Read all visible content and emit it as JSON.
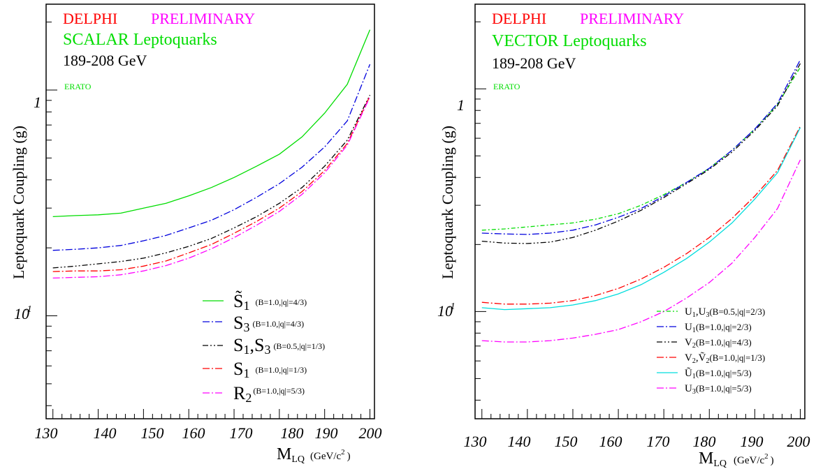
{
  "colors": {
    "red": "#ff0000",
    "magenta": "#ff00ff",
    "green": "#00dd00",
    "blue": "#0000dd",
    "black": "#000000",
    "cyan": "#00dddd"
  },
  "x_axis_ticks": [
    "130",
    "140",
    "150",
    "160",
    "170",
    "180",
    "190",
    "200"
  ],
  "chart_data": [
    {
      "type": "line",
      "title_experiment": "DELPHI",
      "title_status": "PRELIMINARY",
      "subtitle": "SCALAR Leptoquarks",
      "energy": "189-208 GeV",
      "tag": "ERATO",
      "ylabel": "Leptoquark Coupling (g)",
      "xlabel_main": "M",
      "xlabel_sub": "LQ",
      "xlabel_units": "(GeV/c",
      "xlabel_units_exp": "2",
      "xlabel_units_close": ")",
      "yscale": "log",
      "xlim": [
        128.5,
        201
      ],
      "ylim": [
        0.035,
        2.4
      ],
      "y_tick_labels": [
        {
          "value": 1,
          "base": "1",
          "exp": ""
        },
        {
          "value": 0.1,
          "base": "10",
          "exp": "-1"
        }
      ],
      "legend_placement": "bottom-right",
      "series": [
        {
          "name_main": "S̃",
          "name_sub": "1",
          "cond": "(B=1.0,|q|=4/3)",
          "color": "#00dd00",
          "dash": "",
          "x": [
            130,
            135,
            140,
            145,
            150,
            155,
            160,
            165,
            170,
            175,
            180,
            185,
            190,
            195,
            200
          ],
          "y": [
            0.275,
            0.278,
            0.28,
            0.285,
            0.3,
            0.315,
            0.34,
            0.37,
            0.41,
            0.46,
            0.52,
            0.62,
            0.79,
            1.06,
            1.85
          ]
        },
        {
          "name_main": "S",
          "name_sub": "3",
          "cond": "(B=1.0,|q|=4/3)",
          "color": "#0000dd",
          "dash": "10,3,2,3",
          "x": [
            130,
            135,
            140,
            145,
            150,
            155,
            160,
            165,
            170,
            175,
            180,
            185,
            190,
            195,
            200
          ],
          "y": [
            0.195,
            0.197,
            0.2,
            0.205,
            0.215,
            0.227,
            0.245,
            0.265,
            0.295,
            0.335,
            0.385,
            0.455,
            0.56,
            0.73,
            1.3
          ]
        },
        {
          "name_main": "S",
          "name_sub": "1",
          "name_main2": ",S",
          "name_sub2": "3",
          "cond": "(B=0.5,|q|=1/3)",
          "color": "#000000",
          "dash": "8,3,2,3,2,3",
          "x": [
            130,
            135,
            140,
            145,
            150,
            155,
            160,
            165,
            170,
            175,
            180,
            185,
            190,
            195,
            200
          ],
          "y": [
            0.163,
            0.166,
            0.17,
            0.174,
            0.18,
            0.19,
            0.203,
            0.22,
            0.245,
            0.275,
            0.315,
            0.37,
            0.46,
            0.6,
            0.95
          ]
        },
        {
          "name_main": "S",
          "name_sub": "1",
          "cond": "(B=1.0,|q|=1/3)",
          "color": "#ff0000",
          "dash": "10,3,2,3",
          "x": [
            130,
            135,
            140,
            145,
            150,
            155,
            160,
            165,
            170,
            175,
            180,
            185,
            190,
            195,
            200
          ],
          "y": [
            0.157,
            0.158,
            0.158,
            0.16,
            0.166,
            0.175,
            0.19,
            0.207,
            0.232,
            0.262,
            0.3,
            0.355,
            0.44,
            0.58,
            0.94
          ]
        },
        {
          "name_main": "R",
          "name_sub": "2",
          "cond": "(B=1.0,|q|=5/3)",
          "color": "#ff00ff",
          "dash": "10,3,2,3",
          "x": [
            130,
            135,
            140,
            145,
            150,
            155,
            160,
            165,
            170,
            175,
            180,
            185,
            190,
            195,
            200
          ],
          "y": [
            0.147,
            0.148,
            0.149,
            0.152,
            0.158,
            0.167,
            0.18,
            0.198,
            0.222,
            0.252,
            0.29,
            0.345,
            0.43,
            0.57,
            0.93
          ]
        }
      ]
    },
    {
      "type": "line",
      "title_experiment": "DELPHI",
      "title_status": "PRELIMINARY",
      "subtitle": "VECTOR Leptoquarks",
      "energy": "189-208 GeV",
      "tag": "ERATO",
      "ylabel": "Leptoquark Coupling (g)",
      "xlabel_main": "M",
      "xlabel_sub": "LQ",
      "xlabel_units": "(GeV/c",
      "xlabel_units_exp": "2",
      "xlabel_units_close": ")",
      "yscale": "log",
      "xlim": [
        128.5,
        201
      ],
      "ylim": [
        0.033,
        2.4
      ],
      "y_tick_labels": [
        {
          "value": 1,
          "base": "1",
          "exp": ""
        },
        {
          "value": 0.1,
          "base": "10",
          "exp": "-1"
        }
      ],
      "legend_placement": "bottom-right",
      "series": [
        {
          "name_main": "U",
          "name_sub": "1",
          "name_main2": ",U",
          "name_sub2": "3",
          "cond": "(B=0.5,|q|=2/3)",
          "color": "#00dd00",
          "dash": "6,3,2,3",
          "x": [
            130,
            135,
            140,
            145,
            150,
            155,
            160,
            165,
            170,
            175,
            180,
            185,
            190,
            195,
            200
          ],
          "y": [
            0.232,
            0.235,
            0.24,
            0.245,
            0.25,
            0.26,
            0.275,
            0.3,
            0.335,
            0.38,
            0.44,
            0.53,
            0.66,
            0.85,
            1.25
          ]
        },
        {
          "name_main": "U",
          "name_sub": "1",
          "cond": "(B=1.0,|q|=2/3)",
          "color": "#0000dd",
          "dash": "10,3,2,3",
          "x": [
            130,
            135,
            140,
            145,
            150,
            155,
            160,
            165,
            170,
            175,
            180,
            185,
            190,
            195,
            200
          ],
          "y": [
            0.225,
            0.223,
            0.222,
            0.225,
            0.232,
            0.245,
            0.265,
            0.29,
            0.33,
            0.38,
            0.44,
            0.53,
            0.66,
            0.86,
            1.35
          ]
        },
        {
          "name_main": "V",
          "name_sub": "2",
          "cond": "(B=1.0,|q|=4/3)",
          "color": "#000000",
          "dash": "8,3,2,3,2,3",
          "x": [
            130,
            135,
            140,
            145,
            150,
            155,
            160,
            165,
            170,
            175,
            180,
            185,
            190,
            195,
            200
          ],
          "y": [
            0.207,
            0.203,
            0.202,
            0.205,
            0.215,
            0.232,
            0.255,
            0.285,
            0.325,
            0.375,
            0.435,
            0.52,
            0.65,
            0.84,
            1.3
          ]
        },
        {
          "name_main": "V",
          "name_sub": "2",
          "name_main2": ",Ṽ",
          "name_sub2": "2",
          "cond": "(B=1.0,|q|=1/3)",
          "color": "#ff0000",
          "dash": "10,3,2,3",
          "x": [
            130,
            135,
            140,
            145,
            150,
            155,
            160,
            165,
            170,
            175,
            180,
            185,
            190,
            195,
            200
          ],
          "y": [
            0.11,
            0.108,
            0.108,
            0.109,
            0.112,
            0.118,
            0.127,
            0.14,
            0.158,
            0.182,
            0.215,
            0.262,
            0.33,
            0.43,
            0.68
          ]
        },
        {
          "name_main": "Ũ",
          "name_sub": "1",
          "cond": "(B=1.0,|q|=5/3)",
          "color": "#00dddd",
          "dash": "",
          "x": [
            130,
            135,
            140,
            145,
            150,
            155,
            160,
            165,
            170,
            175,
            180,
            185,
            190,
            195,
            200
          ],
          "y": [
            0.104,
            0.102,
            0.103,
            0.104,
            0.107,
            0.112,
            0.12,
            0.132,
            0.15,
            0.173,
            0.205,
            0.25,
            0.32,
            0.42,
            0.67
          ]
        },
        {
          "name_main": "U",
          "name_sub": "3",
          "cond": "(B=1.0,|q|=5/3)",
          "color": "#ff00ff",
          "dash": "10,3,2,3",
          "x": [
            130,
            135,
            140,
            145,
            150,
            155,
            160,
            165,
            170,
            175,
            180,
            185,
            190,
            195,
            200
          ],
          "y": [
            0.074,
            0.073,
            0.073,
            0.074,
            0.076,
            0.079,
            0.083,
            0.09,
            0.1,
            0.115,
            0.135,
            0.165,
            0.215,
            0.29,
            0.48
          ]
        }
      ]
    }
  ]
}
